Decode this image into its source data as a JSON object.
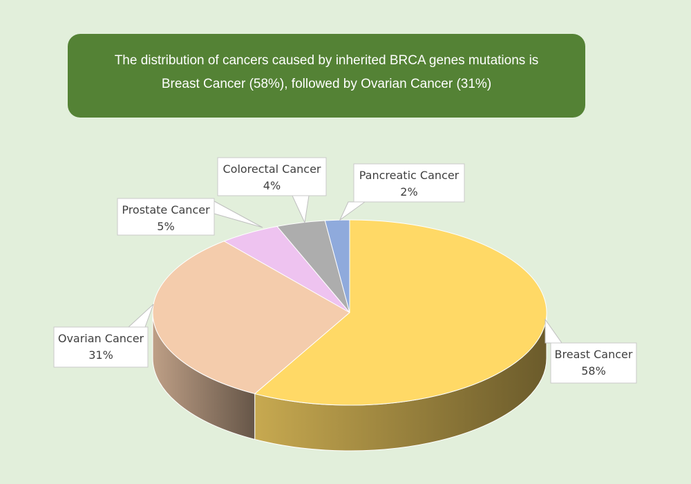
{
  "banner": {
    "line1": "The distribution of cancers caused by inherited BRCA genes mutations is",
    "line2": "Breast Cancer (58%), followed by Ovarian Cancer (31%)"
  },
  "chart_data": {
    "type": "pie",
    "three_d": true,
    "labels_position": "callouts",
    "slices": [
      {
        "name": "Breast Cancer",
        "value": 58,
        "label": "58%",
        "color": "#ffd966"
      },
      {
        "name": "Ovarian Cancer",
        "value": 31,
        "label": "31%",
        "color": "#f4ccac"
      },
      {
        "name": "Prostate Cancer",
        "value": 5,
        "label": "5%",
        "color": "#eec3f0"
      },
      {
        "name": "Colorectal Cancer",
        "value": 4,
        "label": "4%",
        "color": "#adadad"
      },
      {
        "name": "Pancreatic Cancer",
        "value": 2,
        "label": "2%",
        "color": "#8faadc"
      }
    ]
  }
}
